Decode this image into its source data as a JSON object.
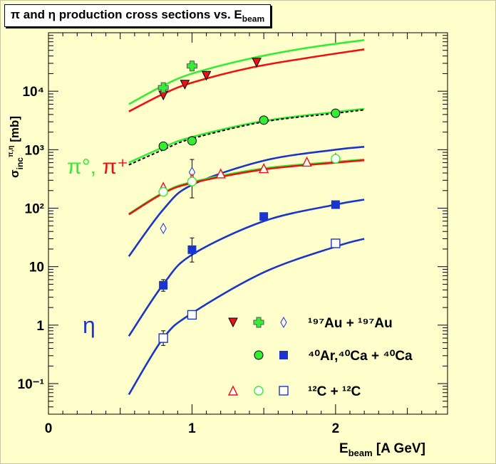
{
  "title": {
    "main": "π and η production cross sections vs. E",
    "sub": "beam"
  },
  "axes": {
    "xlabel_main": "E",
    "xlabel_sub": "beam",
    "xlabel_unit": " [A GeV]",
    "ylabel_main": "σ",
    "ylabel_sup": "π,η",
    "ylabel_sub": "inc",
    "ylabel_unit": " [mb]"
  },
  "annotations": {
    "pi_label_a": "π°,",
    "pi_label_b": " π⁺",
    "eta_label": "η"
  },
  "legend": {
    "au": "¹⁹⁷Au + ¹⁹⁷Au",
    "arca": "⁴⁰Ar,⁴⁰Ca + ⁴⁰Ca",
    "cc": "¹²C + ¹²C"
  },
  "colors": {
    "background": "#ffffcc",
    "green": "#33ee33",
    "red": "#ee1111",
    "blue": "#1a35cc",
    "black": "#000000"
  },
  "chart_data": {
    "type": "scatter",
    "xlim": [
      0,
      2.78
    ],
    "ylim": [
      0.03,
      100000
    ],
    "yscale": "log",
    "x_ticks": [
      {
        "v": 0,
        "label": "0"
      },
      {
        "v": 1,
        "label": "1"
      },
      {
        "v": 2,
        "label": "2"
      }
    ],
    "y_ticks": [
      {
        "v": 0.1,
        "label": "10⁻¹"
      },
      {
        "v": 1,
        "label": "1"
      },
      {
        "v": 10,
        "label": "10"
      },
      {
        "v": 100,
        "label": "10²"
      },
      {
        "v": 1000,
        "label": "10³"
      },
      {
        "v": 10000,
        "label": "10⁴"
      }
    ],
    "grid": false,
    "legend_position": "bottom-right",
    "series": [
      {
        "id": "au_pi0",
        "marker": "triangle-down-filled",
        "color": "#ee1111",
        "points": [
          [
            0.8,
            8500
          ],
          [
            0.95,
            13000
          ],
          [
            1.1,
            18500
          ],
          [
            1.45,
            31000
          ]
        ]
      },
      {
        "id": "au_piplus",
        "marker": "cross",
        "color": "#33ee33",
        "points": [
          [
            0.8,
            11500
          ],
          [
            1.0,
            27000
          ]
        ]
      },
      {
        "id": "au_eta",
        "marker": "diamond-open",
        "color": "#1a35cc",
        "points": [
          [
            0.8,
            45
          ],
          [
            1.0,
            410
          ]
        ]
      },
      {
        "id": "arca_pi",
        "marker": "circle-filled",
        "color": "#33ee33",
        "points": [
          [
            0.8,
            1150
          ],
          [
            1.0,
            1420
          ],
          [
            1.5,
            3200
          ],
          [
            2.0,
            4200
          ]
        ]
      },
      {
        "id": "arca_eta",
        "marker": "square-filled",
        "color": "#1a35cc",
        "points": [
          [
            0.8,
            4.8
          ],
          [
            1.0,
            19.5
          ],
          [
            1.5,
            72
          ],
          [
            2.0,
            115
          ]
        ]
      },
      {
        "id": "cc_pi0",
        "marker": "triangle-up-open",
        "color": "#ee1111",
        "points": [
          [
            0.8,
            230
          ],
          [
            1.0,
            320
          ],
          [
            1.2,
            390
          ],
          [
            1.5,
            480
          ],
          [
            1.8,
            620
          ],
          [
            2.0,
            720
          ]
        ]
      },
      {
        "id": "cc_piplus",
        "marker": "circle-open",
        "color": "#33ee33",
        "points": [
          [
            0.8,
            190
          ],
          [
            1.0,
            285
          ],
          [
            2.0,
            700
          ]
        ]
      },
      {
        "id": "cc_eta",
        "marker": "square-open",
        "color": "#1a35cc",
        "points": [
          [
            0.8,
            0.6
          ],
          [
            1.0,
            1.5
          ],
          [
            2.0,
            25
          ]
        ]
      }
    ],
    "error_bars": [
      {
        "x": 0.8,
        "y": 0.6,
        "lo": 0.45,
        "hi": 0.8
      },
      {
        "x": 0.8,
        "y": 4.8,
        "lo": 3.8,
        "hi": 6.0
      },
      {
        "x": 1.0,
        "y": 19.5,
        "lo": 12,
        "hi": 31
      },
      {
        "x": 1.0,
        "y": 410,
        "lo": 150,
        "hi": 680
      }
    ],
    "curves": [
      {
        "id": "au_green",
        "color": "#33ee33",
        "dash": false,
        "points": [
          [
            0.56,
            6000
          ],
          [
            0.8,
            12500
          ],
          [
            1.0,
            20000
          ],
          [
            1.4,
            36000
          ],
          [
            1.8,
            55000
          ],
          [
            2.2,
            75000
          ]
        ]
      },
      {
        "id": "au_red",
        "color": "#ee1111",
        "dash": false,
        "points": [
          [
            0.56,
            4500
          ],
          [
            0.8,
            9000
          ],
          [
            1.0,
            14000
          ],
          [
            1.4,
            25000
          ],
          [
            1.8,
            37000
          ],
          [
            2.2,
            52000
          ]
        ]
      },
      {
        "id": "arca_green",
        "color": "#33ee33",
        "dash": false,
        "points": [
          [
            0.56,
            600
          ],
          [
            0.8,
            1100
          ],
          [
            1.0,
            1650
          ],
          [
            1.5,
            3100
          ],
          [
            2.0,
            4400
          ],
          [
            2.2,
            5000
          ]
        ]
      },
      {
        "id": "arca_dash",
        "color": "#000000",
        "dash": true,
        "points": [
          [
            0.56,
            550
          ],
          [
            0.8,
            1000
          ],
          [
            1.0,
            1550
          ],
          [
            1.5,
            3000
          ],
          [
            2.0,
            4200
          ],
          [
            2.2,
            4800
          ]
        ]
      },
      {
        "id": "arca_eta_fit",
        "color": "#1a35cc",
        "dash": false,
        "points": [
          [
            0.56,
            15
          ],
          [
            0.8,
            95
          ],
          [
            1.0,
            250
          ],
          [
            1.5,
            650
          ],
          [
            2.0,
            1000
          ],
          [
            2.2,
            1120
          ]
        ]
      },
      {
        "id": "cc_green",
        "color": "#33ee33",
        "dash": false,
        "points": [
          [
            0.56,
            80
          ],
          [
            0.8,
            185
          ],
          [
            1.0,
            280
          ],
          [
            1.5,
            480
          ],
          [
            2.0,
            620
          ],
          [
            2.2,
            680
          ]
        ]
      },
      {
        "id": "cc_red",
        "color": "#ee1111",
        "dash": false,
        "points": [
          [
            0.56,
            78
          ],
          [
            0.8,
            180
          ],
          [
            1.0,
            270
          ],
          [
            1.5,
            460
          ],
          [
            2.0,
            600
          ],
          [
            2.2,
            660
          ]
        ]
      },
      {
        "id": "au_eta_fit",
        "color": "#1a35cc",
        "dash": false,
        "points": [
          [
            0.56,
            0.65
          ],
          [
            0.8,
            5
          ],
          [
            1.0,
            16
          ],
          [
            1.5,
            60
          ],
          [
            2.0,
            115
          ],
          [
            2.2,
            140
          ]
        ]
      },
      {
        "id": "cc_eta_fit",
        "color": "#1a35cc",
        "dash": false,
        "points": [
          [
            0.56,
            0.065
          ],
          [
            0.8,
            0.6
          ],
          [
            1.0,
            1.6
          ],
          [
            1.5,
            8
          ],
          [
            2.0,
            22
          ],
          [
            2.2,
            30
          ]
        ]
      }
    ]
  }
}
